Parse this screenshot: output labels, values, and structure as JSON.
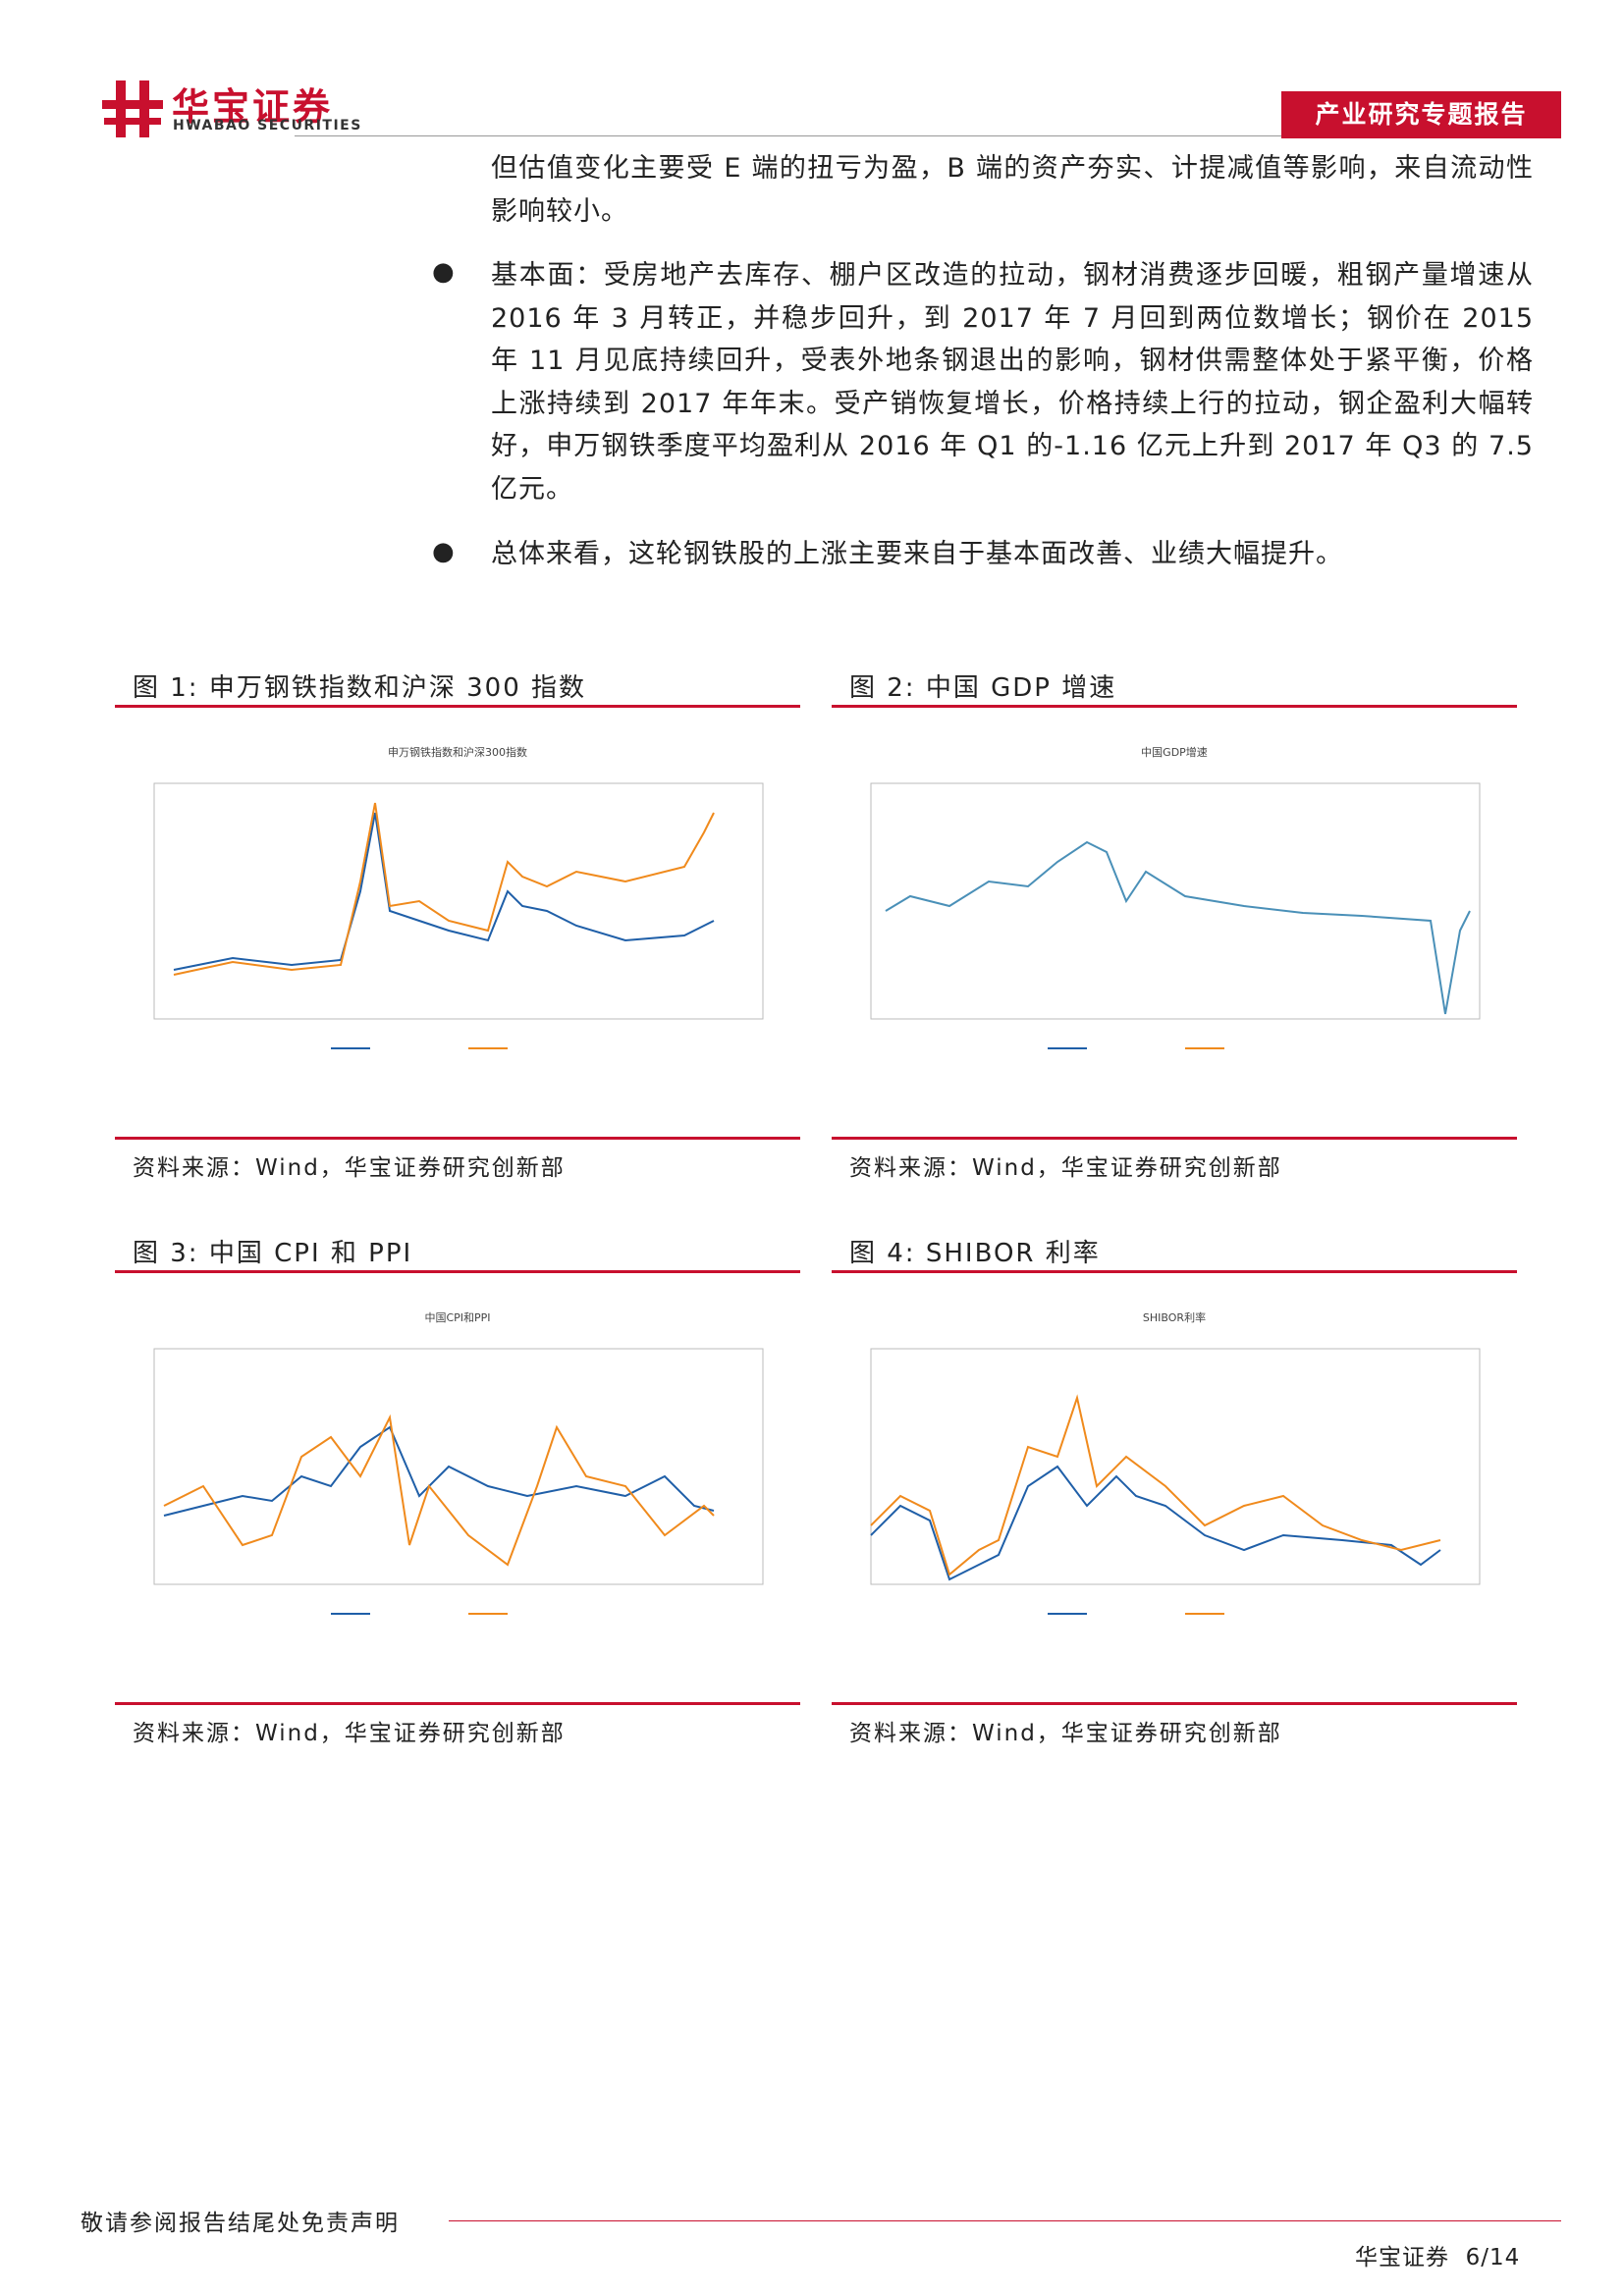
{
  "header": {
    "logo_cn": "华宝证券",
    "logo_en": "HWABAO SECURITIES",
    "report_type": "产业研究专题报告"
  },
  "body": {
    "paragraph": "但估值变化主要受 E 端的扭亏为盈，B 端的资产夯实、计提减值等影响，来自流动性影响较小。",
    "bullets": [
      "基本面：受房地产去库存、棚户区改造的拉动，钢材消费逐步回暖，粗钢产量增速从 2016 年 3 月转正，并稳步回升，到 2017 年 7 月回到两位数增长；钢价在 2015 年 11 月见底持续回升，受表外地条钢退出的影响，钢材供需整体处于紧平衡，价格上涨持续到 2017 年年末。受产销恢复增长，价格持续上行的拉动，钢企盈利大幅转好，申万钢铁季度平均盈利从 2016 年 Q1 的-1.16 亿元上升到 2017 年 Q3 的 7.5 亿元。",
      "总体来看，这轮钢铁股的上涨主要来自于基本面改善、业绩大幅提升。"
    ]
  },
  "figures": [
    {
      "label": "图 1:",
      "title": "申万钢铁指数和沪深 300 指数",
      "chart_title": "申万钢铁指数和沪深300指数",
      "source": "资料来源：Wind，华宝证券研究创新部"
    },
    {
      "label": "图 2:",
      "title": "中国 GDP 增速",
      "chart_title": "中国GDP增速",
      "source": "资料来源：Wind，华宝证券研究创新部"
    },
    {
      "label": "图 3:",
      "title": "中国 CPI 和 PPI",
      "chart_title": "中国CPI和PPI",
      "source": "资料来源：Wind，华宝证券研究创新部"
    },
    {
      "label": "图 4:",
      "title": "SHIBOR 利率",
      "chart_title": "SHIBOR利率",
      "source": "资料来源：Wind，华宝证券研究创新部"
    }
  ],
  "footer": {
    "disclaimer": "敬请参阅报告结尾处免责声明",
    "company": "华宝证券",
    "page": "6/14"
  }
}
